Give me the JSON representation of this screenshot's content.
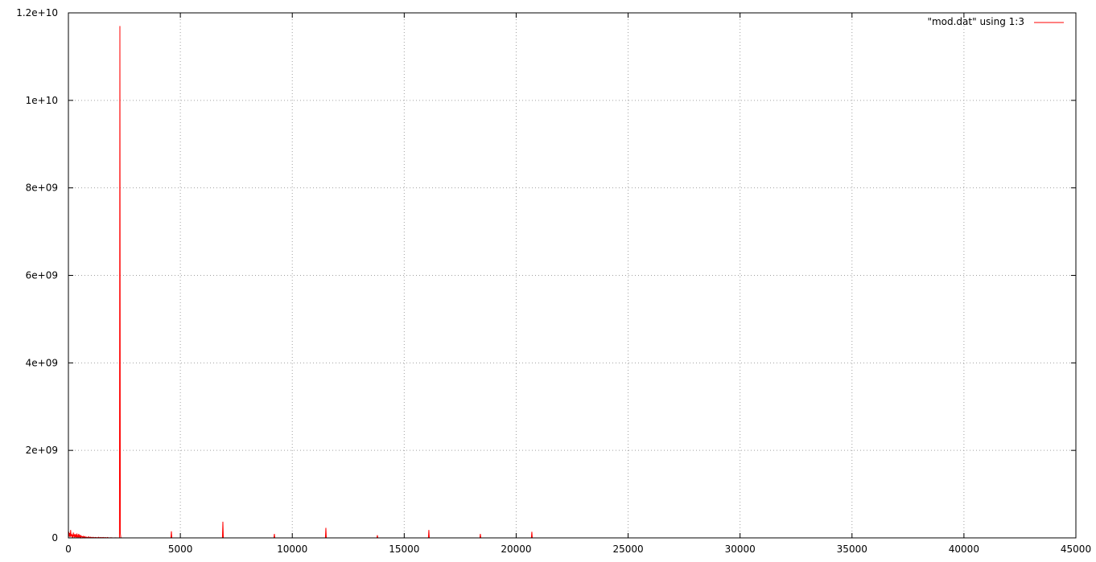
{
  "chart_data": {
    "type": "line",
    "title": "",
    "xlabel": "",
    "ylabel": "",
    "xlim": [
      0,
      45000
    ],
    "ylim": [
      0,
      12000000000
    ],
    "grid": true,
    "legend_position": "top-right",
    "x_ticks": [
      {
        "value": 0,
        "label": "0"
      },
      {
        "value": 5000,
        "label": "5000"
      },
      {
        "value": 10000,
        "label": "10000"
      },
      {
        "value": 15000,
        "label": "15000"
      },
      {
        "value": 20000,
        "label": "20000"
      },
      {
        "value": 25000,
        "label": "25000"
      },
      {
        "value": 30000,
        "label": "30000"
      },
      {
        "value": 35000,
        "label": "35000"
      },
      {
        "value": 40000,
        "label": "40000"
      },
      {
        "value": 45000,
        "label": "45000"
      }
    ],
    "y_ticks": [
      {
        "value": 0,
        "label": "0"
      },
      {
        "value": 2000000000,
        "label": "2e+09"
      },
      {
        "value": 4000000000,
        "label": "4e+09"
      },
      {
        "value": 6000000000,
        "label": "6e+09"
      },
      {
        "value": 8000000000,
        "label": "8e+09"
      },
      {
        "value": 10000000000,
        "label": "1e+10"
      },
      {
        "value": 12000000000,
        "label": "1.2e+10"
      }
    ],
    "series": [
      {
        "name": "\"mod.dat\" using 1:3",
        "color": "#ff0000",
        "points": [
          [
            0,
            60000000
          ],
          [
            20,
            140000000
          ],
          [
            40,
            30000000
          ],
          [
            60,
            110000000
          ],
          [
            80,
            20000000
          ],
          [
            100,
            180000000
          ],
          [
            120,
            40000000
          ],
          [
            140,
            90000000
          ],
          [
            160,
            15000000
          ],
          [
            180,
            70000000
          ],
          [
            200,
            10000000
          ],
          [
            220,
            120000000
          ],
          [
            240,
            30000000
          ],
          [
            260,
            60000000
          ],
          [
            280,
            8000000
          ],
          [
            300,
            85000000
          ],
          [
            320,
            20000000
          ],
          [
            340,
            55000000
          ],
          [
            360,
            10000000
          ],
          [
            380,
            100000000
          ],
          [
            400,
            25000000
          ],
          [
            420,
            45000000
          ],
          [
            440,
            9000000
          ],
          [
            460,
            90000000
          ],
          [
            480,
            15000000
          ],
          [
            500,
            50000000
          ],
          [
            520,
            12000000
          ],
          [
            540,
            65000000
          ],
          [
            560,
            10000000
          ],
          [
            580,
            40000000
          ],
          [
            600,
            25000000
          ],
          [
            620,
            30000000
          ],
          [
            640,
            8000000
          ],
          [
            660,
            35000000
          ],
          [
            680,
            15000000
          ],
          [
            700,
            25000000
          ],
          [
            720,
            6000000
          ],
          [
            740,
            30000000
          ],
          [
            760,
            10000000
          ],
          [
            800,
            20000000
          ],
          [
            850,
            5000000
          ],
          [
            900,
            25000000
          ],
          [
            950,
            8000000
          ],
          [
            1000,
            18000000
          ],
          [
            1050,
            4000000
          ],
          [
            1100,
            15000000
          ],
          [
            1150,
            3000000
          ],
          [
            1200,
            12000000
          ],
          [
            1300,
            3000000
          ],
          [
            1350,
            15000000
          ],
          [
            1400,
            2000000
          ],
          [
            1450,
            10000000
          ],
          [
            1500,
            2000000
          ],
          [
            1550,
            12000000
          ],
          [
            1600,
            2000000
          ],
          [
            1650,
            9000000
          ],
          [
            1700,
            1000000
          ],
          [
            1750,
            10000000
          ],
          [
            1800,
            1000000
          ],
          [
            1900,
            5000000
          ],
          [
            2000,
            1000000
          ],
          [
            2100,
            3000000
          ],
          [
            2200,
            1000000
          ],
          [
            2280,
            2000000
          ],
          [
            2300,
            11700000000
          ],
          [
            2320,
            100000000
          ],
          [
            2340,
            5000000
          ],
          [
            2400,
            1000000
          ],
          [
            2500,
            1000000
          ],
          [
            3000,
            1000000
          ],
          [
            3500,
            1000000
          ],
          [
            4000,
            1000000
          ],
          [
            4580,
            1000000
          ],
          [
            4600,
            150000000
          ],
          [
            4620,
            1000000
          ],
          [
            5000,
            1000000
          ],
          [
            6000,
            1000000
          ],
          [
            6880,
            1000000
          ],
          [
            6900,
            370000000
          ],
          [
            6920,
            1000000
          ],
          [
            8000,
            1000000
          ],
          [
            9180,
            1000000
          ],
          [
            9200,
            90000000
          ],
          [
            9220,
            1000000
          ],
          [
            10500,
            1000000
          ],
          [
            11480,
            1000000
          ],
          [
            11500,
            230000000
          ],
          [
            11520,
            1000000
          ],
          [
            12500,
            1000000
          ],
          [
            13780,
            1000000
          ],
          [
            13800,
            60000000
          ],
          [
            13820,
            1000000
          ],
          [
            15000,
            1000000
          ],
          [
            16080,
            1000000
          ],
          [
            16100,
            180000000
          ],
          [
            16120,
            1000000
          ],
          [
            17500,
            1000000
          ],
          [
            18380,
            1000000
          ],
          [
            18400,
            90000000
          ],
          [
            18420,
            1000000
          ],
          [
            19500,
            1000000
          ],
          [
            20680,
            1000000
          ],
          [
            20700,
            140000000
          ],
          [
            20720,
            1000000
          ],
          [
            21000,
            0
          ],
          [
            30000,
            0
          ],
          [
            45000,
            0
          ]
        ]
      }
    ]
  }
}
